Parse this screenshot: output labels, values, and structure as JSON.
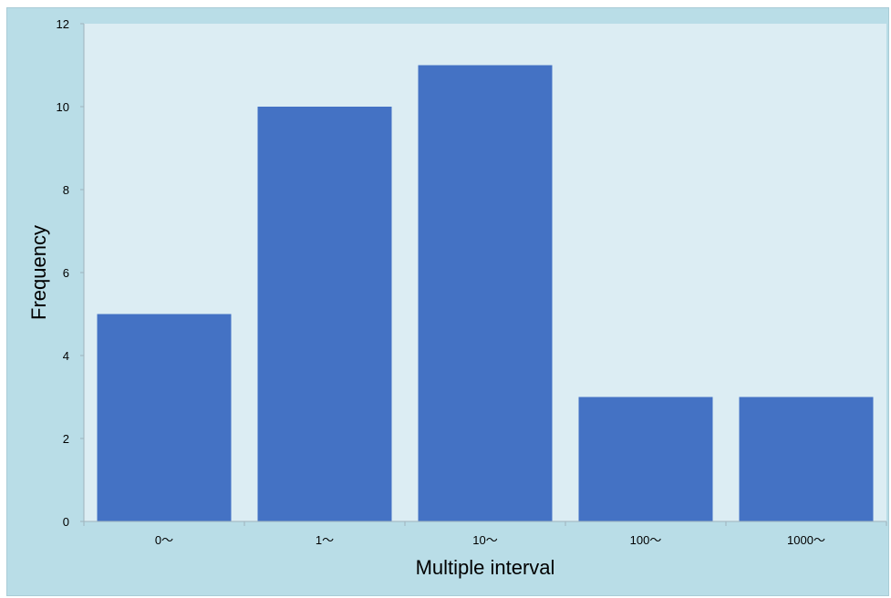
{
  "chart_data": {
    "type": "bar",
    "title": "",
    "xlabel": "Multiple interval",
    "ylabel": "Frequency",
    "categories": [
      "0～",
      "1～",
      "10～",
      "100～",
      "1000～"
    ],
    "values": [
      5,
      10,
      11,
      3,
      3
    ],
    "ylim": [
      0,
      12
    ],
    "yticks": [
      "0",
      "2",
      "4",
      "6",
      "8",
      "10",
      "12"
    ],
    "grid": false,
    "legend": "none",
    "colors": {
      "bar": "#4472c4",
      "plot_background": "#dcedf3",
      "frame_background": "#b9dde7",
      "axis": "#9fb4bc"
    }
  }
}
